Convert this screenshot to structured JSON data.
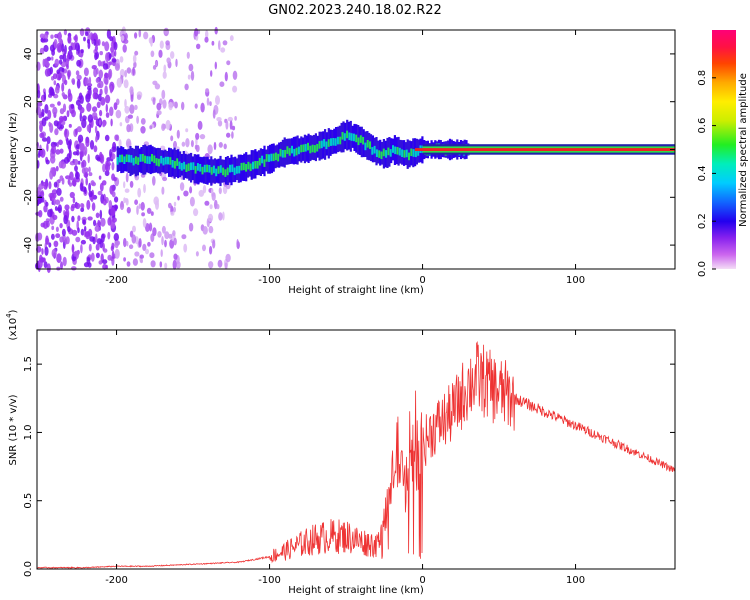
{
  "title": "GN02.2023.240.18.02.R22",
  "chart_data": [
    {
      "type": "heatmap",
      "xlabel": "Height of straight line (km)",
      "ylabel": "Frequency (Hz)",
      "xlim": [
        -252,
        165
      ],
      "ylim": [
        -50,
        50
      ],
      "xticks": [
        -200,
        -100,
        0,
        100
      ],
      "yticks": [
        -40,
        -20,
        0,
        20,
        40
      ],
      "colorbar": {
        "label": "Normalized spectral amplitude",
        "ticks": [
          "0.0",
          "0.2",
          "0.4",
          "0.6",
          "0.8"
        ],
        "range": [
          0,
          1
        ]
      },
      "trace": {
        "x": [
          -200,
          -190,
          -180,
          -170,
          -160,
          -150,
          -140,
          -130,
          -120,
          -110,
          -100,
          -90,
          -80,
          -70,
          -60,
          -50,
          -45,
          -40,
          -35,
          -30,
          -25,
          -20,
          -15,
          -10,
          -5,
          0,
          10,
          20,
          30,
          165
        ],
        "frequency": [
          -4,
          -5,
          -4,
          -5,
          -6,
          -8,
          -9,
          -9,
          -8,
          -6,
          -4,
          -1,
          0,
          1,
          3,
          6,
          5,
          3,
          1,
          -1,
          -2,
          0,
          -1,
          -2,
          -1,
          0,
          0,
          0,
          0,
          0
        ]
      },
      "noise_region_x": [
        -252,
        -120
      ],
      "grid": false
    },
    {
      "type": "line",
      "xlabel": "Height of straight line (km)",
      "ylabel": "SNR (10 * v/v)",
      "y_scale_label": "(x10",
      "y_scale_exp": "4",
      "y_scale_close": ")",
      "xlim": [
        -252,
        165
      ],
      "ylim": [
        0,
        1.75
      ],
      "xticks": [
        -200,
        -100,
        0,
        100
      ],
      "yticks": [
        "0.0",
        "0.5",
        "1.0",
        "1.5"
      ],
      "color": "#ee3333",
      "series": [
        {
          "x": [
            -252,
            -220,
            -200,
            -180,
            -160,
            -140,
            -120,
            -110,
            -100,
            -90,
            -80,
            -70,
            -60,
            -50,
            -40,
            -30,
            -25,
            -20,
            -18,
            -15,
            -12,
            -10,
            -8,
            -5,
            0,
            5,
            10,
            15,
            20,
            25,
            30,
            35,
            40,
            45,
            50,
            60,
            70,
            80,
            90,
            100,
            110,
            120,
            130,
            140,
            150,
            165
          ],
          "values": [
            0.01,
            0.01,
            0.02,
            0.02,
            0.03,
            0.04,
            0.05,
            0.07,
            0.09,
            0.13,
            0.18,
            0.22,
            0.24,
            0.24,
            0.2,
            0.18,
            0.35,
            0.6,
            0.9,
            0.8,
            0.55,
            0.75,
            0.9,
            0.85,
            0.9,
            1.0,
            1.05,
            1.1,
            1.15,
            1.25,
            1.35,
            1.4,
            1.38,
            1.33,
            1.3,
            1.25,
            1.2,
            1.15,
            1.1,
            1.05,
            1.0,
            0.95,
            0.9,
            0.85,
            0.8,
            0.72
          ]
        }
      ],
      "grid": false
    }
  ]
}
